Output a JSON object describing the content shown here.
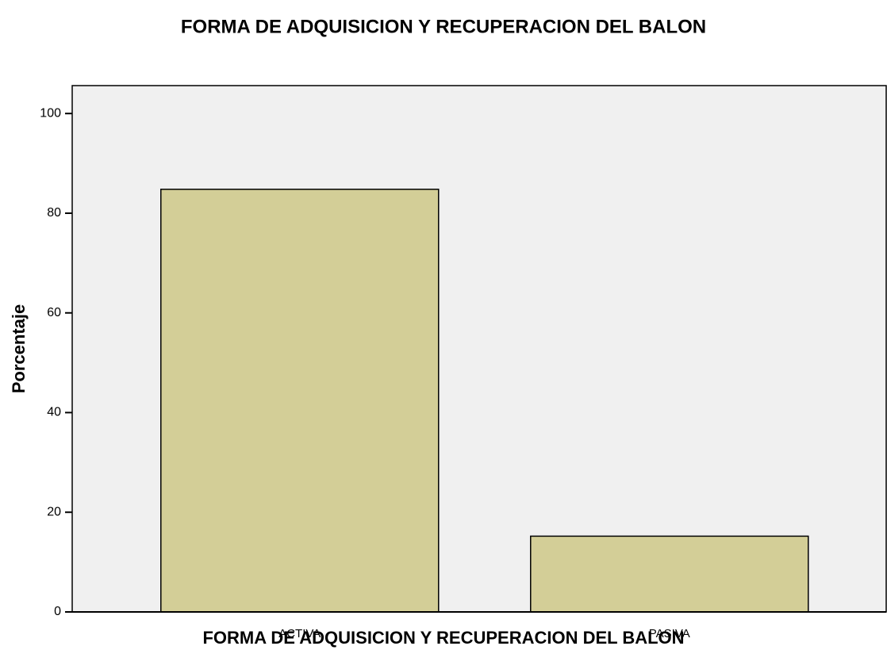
{
  "chart_data": {
    "type": "bar",
    "title": "FORMA DE ADQUISICION Y RECUPERACION DEL BALON",
    "x_label": "FORMA DE ADQUISICION Y RECUPERACION DEL BALON",
    "y_label": "Porcentaje",
    "categories": [
      "ACTIVA",
      "PASIVA"
    ],
    "values": [
      84.8,
      15.2
    ],
    "color": "#d3ce97",
    "ylim": [
      0,
      105.6
    ],
    "yticks": [
      0,
      20,
      40,
      60,
      80,
      100
    ],
    "grid": false
  }
}
